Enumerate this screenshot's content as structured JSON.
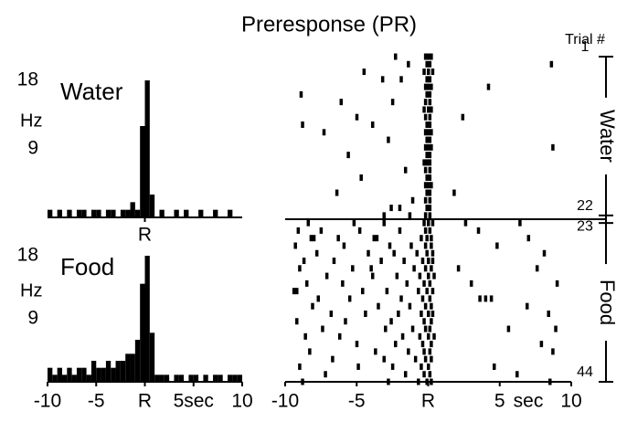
{
  "title": "Preresponse (PR)",
  "chart_data": [
    {
      "type": "histogram",
      "label": "Water",
      "ylabel": "Hz",
      "color": "#000000",
      "bins": [
        -10,
        -9.5,
        -9,
        -8.5,
        -8,
        -7.5,
        -7,
        -6.5,
        -6,
        -5.5,
        -5,
        -4.5,
        -4,
        -3.5,
        -3,
        -2.5,
        -2,
        -1.5,
        -1,
        -0.5,
        0,
        0.5,
        1,
        1.5,
        2,
        2.5,
        3,
        3.5,
        4,
        4.5,
        5,
        5.5,
        6,
        6.5,
        7,
        7.5,
        8,
        8.5,
        9,
        9.5,
        10
      ],
      "counts": [
        1,
        0,
        1,
        0,
        1,
        0,
        1,
        1,
        0,
        1,
        1,
        0,
        1,
        1,
        0,
        1,
        1,
        2,
        1,
        12,
        18,
        3,
        0,
        1,
        0,
        0,
        1,
        0,
        1,
        0,
        0,
        1,
        0,
        0,
        1,
        0,
        0,
        1,
        0,
        0
      ],
      "xlim": [
        -10,
        10
      ],
      "ylim": [
        0,
        18
      ],
      "yticks": [
        9,
        18
      ],
      "xticks": [
        {
          "value": 0,
          "label": "R"
        }
      ]
    },
    {
      "type": "histogram",
      "label": "Food",
      "ylabel": "Hz",
      "color": "#000000",
      "bins": [
        -10,
        -9.5,
        -9,
        -8.5,
        -8,
        -7.5,
        -7,
        -6.5,
        -6,
        -5.5,
        -5,
        -4.5,
        -4,
        -3.5,
        -3,
        -2.5,
        -2,
        -1.5,
        -1,
        -0.5,
        0,
        0.5,
        1,
        1.5,
        2,
        2.5,
        3,
        3.5,
        4,
        4.5,
        5,
        5.5,
        6,
        6.5,
        7,
        7.5,
        8,
        8.5,
        9,
        9.5,
        10
      ],
      "counts": [
        2,
        1,
        2,
        1,
        2,
        1,
        2,
        2,
        1,
        3,
        2,
        2,
        3,
        2,
        3,
        3,
        4,
        4,
        6,
        14,
        18,
        7,
        1,
        1,
        1,
        0,
        1,
        1,
        0,
        1,
        1,
        0,
        1,
        0,
        1,
        1,
        0,
        1,
        1,
        1
      ],
      "xlim": [
        -10,
        10
      ],
      "ylim": [
        0,
        18
      ],
      "yticks": [
        9,
        18
      ],
      "xticks": [
        -10,
        -5,
        {
          "value": 0,
          "label": "R"
        },
        {
          "value": 5,
          "label": "5sec"
        },
        10
      ]
    },
    {
      "type": "raster",
      "color": "#000000",
      "xlim": [
        -10,
        10
      ],
      "xticks": [
        -10,
        -5,
        {
          "value": 0,
          "label": "R"
        },
        5,
        10
      ],
      "xlabel": "sec",
      "trial_axis_label": "Trial #",
      "trial_ticks": [
        1,
        22,
        23,
        44
      ],
      "groups": [
        "Water",
        "Food"
      ],
      "trials": [
        [
          -2.3,
          -0.2,
          0,
          0.2
        ],
        [
          -1.4,
          -0.1,
          0.1,
          8.6
        ],
        [
          -4.5,
          -0.3,
          0,
          0.3
        ],
        [
          -3.2,
          -1.9,
          -0.1,
          0.1
        ],
        [
          -0.2,
          0,
          0.2,
          4.2
        ],
        [
          -8.9,
          -0.1,
          0.1
        ],
        [
          -6.1,
          -2.5,
          -0.2,
          0.1
        ],
        [
          -0.3,
          0,
          0.2
        ],
        [
          -5.0,
          -0.2,
          0.1,
          2.4
        ],
        [
          -8.8,
          -3.9,
          -0.1,
          0.1
        ],
        [
          -7.3,
          -0.2,
          0,
          0.2
        ],
        [
          -2.8,
          -0.1,
          0.1
        ],
        [
          -0.2,
          0,
          0.2,
          8.7
        ],
        [
          -5.6,
          -0.1,
          0.1
        ],
        [
          -0.3,
          -0.1,
          0.1
        ],
        [
          -1.6,
          -0.2,
          0.1
        ],
        [
          -4.7,
          -0.1,
          0.1
        ],
        [
          -0.2,
          0,
          0.2
        ],
        [
          -6.4,
          -0.1,
          0.1,
          1.8
        ],
        [
          -1.1,
          -0.2,
          0.1
        ],
        [
          -2.6,
          -2.0,
          -0.1,
          0.1
        ],
        [
          -3.1,
          -1.3,
          -0.2,
          0.1
        ],
        [
          -8.4,
          -5.2,
          -3.1,
          -0.3,
          0,
          0.3,
          2.6,
          6.4
        ],
        [
          -9.1,
          -7.5,
          -4.8,
          -2.0,
          -0.2,
          0.1,
          3.5
        ],
        [
          -8.2,
          -8.0,
          -6.3,
          -3.8,
          -3.6,
          -0.5,
          -0.1,
          0.2,
          7.0
        ],
        [
          -9.3,
          -5.9,
          -2.7,
          -1.2,
          -0.2,
          0.2,
          4.8
        ],
        [
          -7.8,
          -4.2,
          -2.4,
          -0.8,
          -0.1,
          0.3,
          8.1
        ],
        [
          -8.7,
          -6.6,
          -3.3,
          -1.7,
          -0.4,
          0,
          0.3
        ],
        [
          -9.0,
          -5.3,
          -4.0,
          -1.0,
          -0.2,
          0.2,
          2.1,
          7.6
        ],
        [
          -7.1,
          -3.9,
          -2.2,
          -0.6,
          0,
          0.4
        ],
        [
          -8.5,
          -6.0,
          -1.5,
          -0.3,
          0.1,
          3.0,
          9.0
        ],
        [
          -9.4,
          -9.2,
          -4.6,
          -2.9,
          -0.7,
          -0.1,
          0.3
        ],
        [
          -7.7,
          -5.5,
          -1.9,
          -0.4,
          0.1,
          3.6,
          4.0,
          4.4
        ],
        [
          -8.1,
          -3.5,
          -1.3,
          -0.2,
          0.2,
          6.9
        ],
        [
          -6.8,
          -4.4,
          -2.1,
          -0.5,
          0,
          0.3,
          8.4
        ],
        [
          -9.2,
          -5.8,
          -2.6,
          -0.3,
          0.2
        ],
        [
          -7.4,
          -3.0,
          -1.1,
          -0.2,
          0.1,
          5.6,
          8.9
        ],
        [
          -8.6,
          -6.2,
          -1.8,
          -0.6,
          0,
          0.4
        ],
        [
          -5.0,
          -2.3,
          -0.4,
          0.2,
          7.9
        ],
        [
          -8.3,
          -3.7,
          -1.4,
          -0.3,
          0.1,
          8.7
        ],
        [
          -6.7,
          -3.1,
          -0.9,
          -0.2,
          0.2
        ],
        [
          -9.0,
          -4.9,
          -2.5,
          -0.5,
          0,
          4.6
        ],
        [
          -7.2,
          -1.6,
          -0.3,
          0.1,
          6.2
        ],
        [
          -8.8,
          -2.8,
          -0.7,
          -0.1,
          0.2,
          8.5
        ]
      ]
    }
  ]
}
